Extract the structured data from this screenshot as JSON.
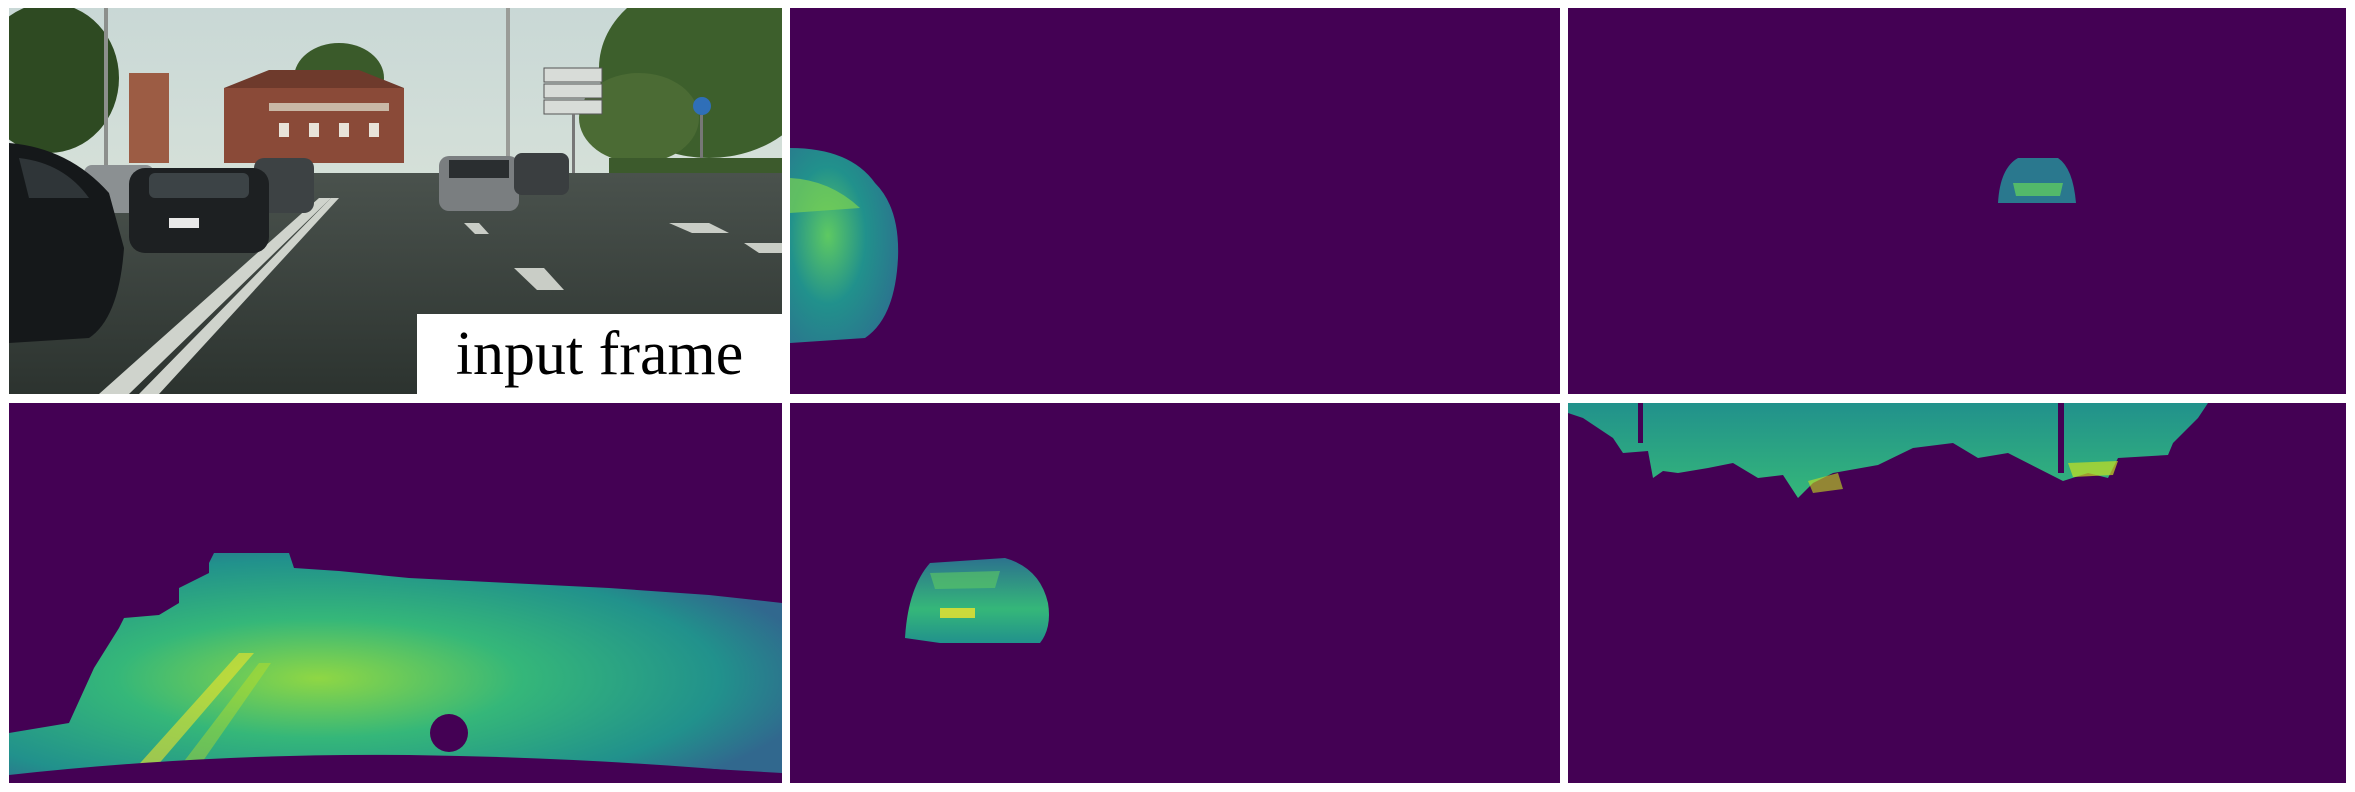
{
  "figure": {
    "caption": "input frame",
    "colors": {
      "background_map": "#440154",
      "map_low": "#3b528b",
      "map_mid": "#21918c",
      "map_high": "#5ec962",
      "map_peak": "#fde725"
    },
    "panels": [
      {
        "name": "input-frame-photo"
      },
      {
        "name": "attention-map-left-car"
      },
      {
        "name": "attention-map-distant-car"
      },
      {
        "name": "attention-map-road"
      },
      {
        "name": "attention-map-center-car"
      },
      {
        "name": "attention-map-buildings-trees"
      }
    ]
  }
}
